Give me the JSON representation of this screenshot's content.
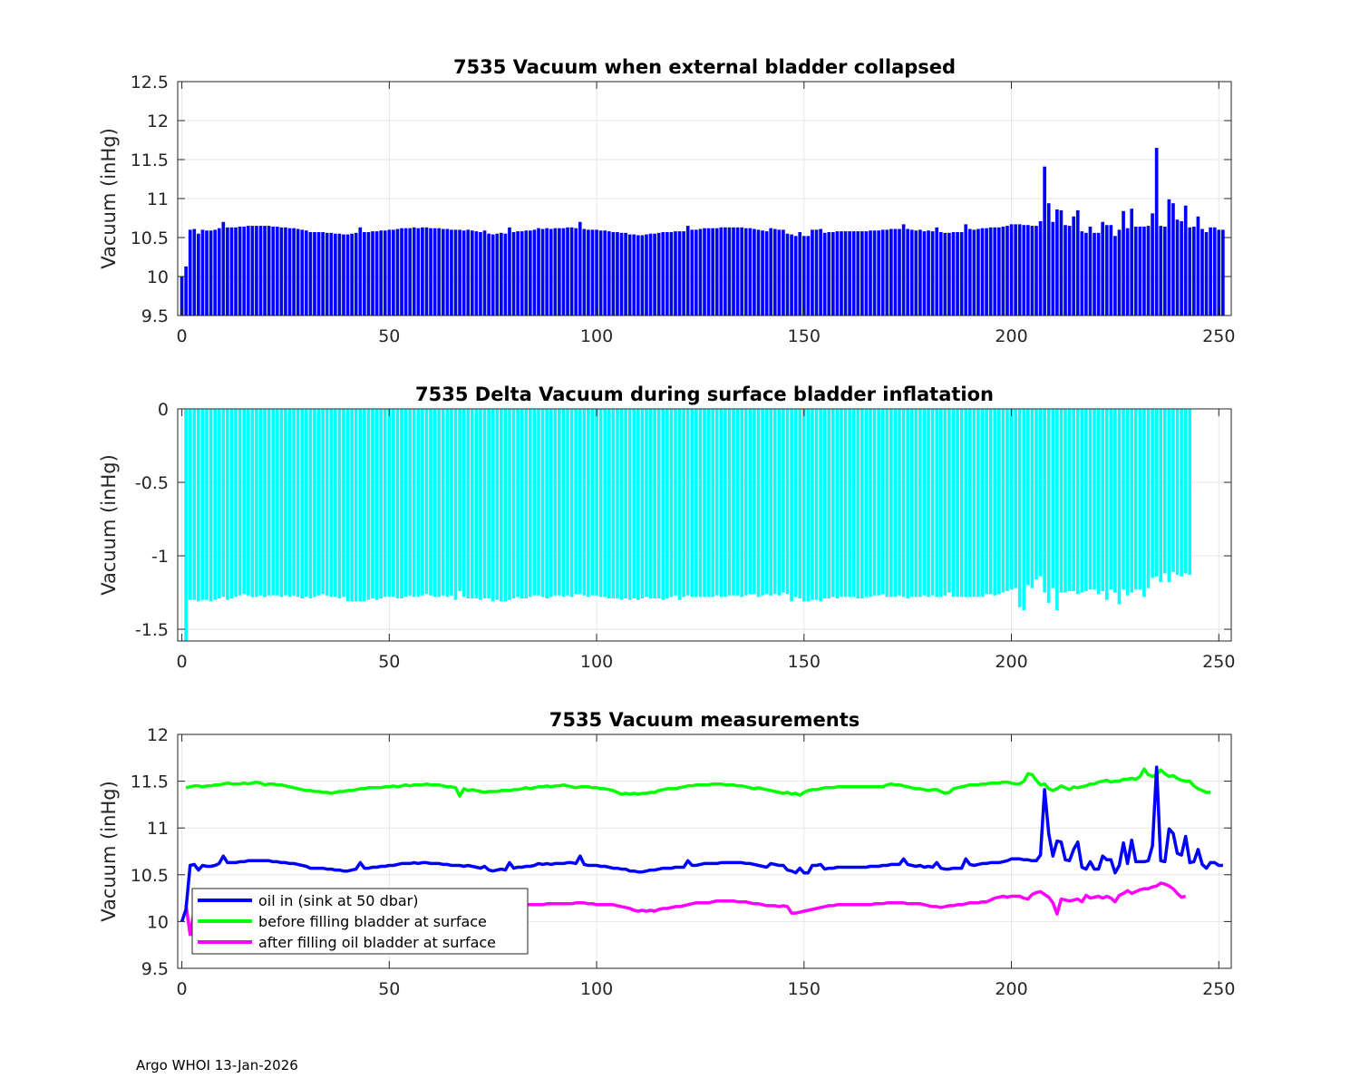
{
  "figure": {
    "footer": "Argo WHOI 13-Jan-2026"
  },
  "chart_data": [
    {
      "type": "bar",
      "title": "7535 Vacuum when external bladder collapsed",
      "xlabel": "",
      "ylabel": "Vacuum (inHg)",
      "xlim": [
        -1,
        253
      ],
      "ylim": [
        9.5,
        12.5
      ],
      "xticks": [
        0,
        50,
        100,
        150,
        200,
        250
      ],
      "yticks": [
        9.5,
        10,
        10.5,
        11,
        11.5,
        12,
        12.5
      ],
      "grid": true,
      "color": "#0000ff",
      "x_start": 0,
      "values": [
        10.0,
        10.13,
        10.6,
        10.61,
        10.55,
        10.6,
        10.59,
        10.59,
        10.6,
        10.62,
        10.7,
        10.63,
        10.63,
        10.63,
        10.64,
        10.64,
        10.65,
        10.65,
        10.65,
        10.65,
        10.65,
        10.65,
        10.64,
        10.64,
        10.63,
        10.63,
        10.62,
        10.62,
        10.61,
        10.6,
        10.59,
        10.57,
        10.57,
        10.57,
        10.57,
        10.56,
        10.56,
        10.55,
        10.55,
        10.54,
        10.54,
        10.55,
        10.56,
        10.63,
        10.57,
        10.57,
        10.58,
        10.58,
        10.59,
        10.59,
        10.6,
        10.6,
        10.61,
        10.62,
        10.62,
        10.62,
        10.63,
        10.62,
        10.63,
        10.63,
        10.62,
        10.62,
        10.62,
        10.61,
        10.61,
        10.6,
        10.6,
        10.6,
        10.59,
        10.6,
        10.59,
        10.58,
        10.57,
        10.59,
        10.55,
        10.54,
        10.55,
        10.56,
        10.55,
        10.63,
        10.57,
        10.58,
        10.58,
        10.59,
        10.59,
        10.6,
        10.62,
        10.61,
        10.62,
        10.61,
        10.62,
        10.62,
        10.62,
        10.63,
        10.63,
        10.62,
        10.7,
        10.61,
        10.6,
        10.6,
        10.6,
        10.59,
        10.59,
        10.58,
        10.57,
        10.57,
        10.56,
        10.56,
        10.54,
        10.54,
        10.53,
        10.53,
        10.54,
        10.55,
        10.55,
        10.56,
        10.57,
        10.57,
        10.57,
        10.58,
        10.58,
        10.58,
        10.65,
        10.6,
        10.6,
        10.61,
        10.62,
        10.62,
        10.62,
        10.62,
        10.63,
        10.63,
        10.63,
        10.63,
        10.63,
        10.63,
        10.62,
        10.62,
        10.61,
        10.6,
        10.59,
        10.58,
        10.62,
        10.61,
        10.6,
        10.6,
        10.55,
        10.54,
        10.52,
        10.57,
        10.52,
        10.52,
        10.6,
        10.6,
        10.61,
        10.56,
        10.57,
        10.57,
        10.58,
        10.58,
        10.58,
        10.58,
        10.58,
        10.58,
        10.58,
        10.58,
        10.59,
        10.59,
        10.59,
        10.6,
        10.6,
        10.61,
        10.61,
        10.61,
        10.67,
        10.61,
        10.6,
        10.59,
        10.6,
        10.58,
        10.59,
        10.58,
        10.63,
        10.57,
        10.56,
        10.56,
        10.57,
        10.57,
        10.57,
        10.67,
        10.61,
        10.6,
        10.61,
        10.62,
        10.62,
        10.63,
        10.63,
        10.63,
        10.64,
        10.65,
        10.67,
        10.67,
        10.67,
        10.66,
        10.66,
        10.65,
        10.65,
        10.71,
        11.41,
        10.94,
        10.7,
        10.86,
        10.85,
        10.66,
        10.65,
        10.77,
        10.85,
        10.58,
        10.56,
        10.64,
        10.56,
        10.56,
        10.7,
        10.66,
        10.66,
        10.52,
        10.6,
        10.84,
        10.62,
        10.87,
        10.64,
        10.64,
        10.64,
        10.65,
        10.81,
        11.65,
        10.65,
        10.64,
        10.99,
        10.94,
        10.73,
        10.71,
        10.91,
        10.63,
        10.64,
        10.77,
        10.61,
        10.57,
        10.63,
        10.63,
        10.6,
        10.6
      ]
    },
    {
      "type": "bar",
      "title": "7535 Delta Vacuum during surface bladder inflatation",
      "xlabel": "",
      "ylabel": "Vacuum (inHg)",
      "xlim": [
        -1,
        253
      ],
      "ylim": [
        -1.58,
        0
      ],
      "xticks": [
        0,
        50,
        100,
        150,
        200,
        250
      ],
      "yticks": [
        -1.5,
        -1,
        -0.5,
        0
      ],
      "ytick_labels": [
        "-1.5",
        "-1",
        "-0.5",
        "0"
      ],
      "grid": true,
      "color": "#00ffff",
      "x_start": 1,
      "values": [
        -1.58,
        -1.3,
        -1.3,
        -1.31,
        -1.3,
        -1.3,
        -1.31,
        -1.3,
        -1.29,
        -1.28,
        -1.3,
        -1.29,
        -1.28,
        -1.27,
        -1.26,
        -1.27,
        -1.28,
        -1.28,
        -1.27,
        -1.28,
        -1.27,
        -1.27,
        -1.27,
        -1.28,
        -1.27,
        -1.28,
        -1.27,
        -1.28,
        -1.29,
        -1.28,
        -1.29,
        -1.28,
        -1.27,
        -1.26,
        -1.27,
        -1.28,
        -1.28,
        -1.29,
        -1.28,
        -1.31,
        -1.31,
        -1.31,
        -1.31,
        -1.31,
        -1.3,
        -1.29,
        -1.3,
        -1.29,
        -1.28,
        -1.28,
        -1.28,
        -1.29,
        -1.29,
        -1.28,
        -1.27,
        -1.28,
        -1.28,
        -1.27,
        -1.26,
        -1.27,
        -1.28,
        -1.28,
        -1.27,
        -1.28,
        -1.27,
        -1.3,
        -1.24,
        -1.28,
        -1.29,
        -1.29,
        -1.29,
        -1.3,
        -1.29,
        -1.29,
        -1.31,
        -1.3,
        -1.31,
        -1.31,
        -1.3,
        -1.29,
        -1.28,
        -1.29,
        -1.29,
        -1.28,
        -1.27,
        -1.27,
        -1.28,
        -1.29,
        -1.28,
        -1.27,
        -1.27,
        -1.28,
        -1.27,
        -1.28,
        -1.26,
        -1.26,
        -1.27,
        -1.28,
        -1.27,
        -1.27,
        -1.28,
        -1.28,
        -1.29,
        -1.29,
        -1.29,
        -1.3,
        -1.29,
        -1.3,
        -1.29,
        -1.3,
        -1.29,
        -1.28,
        -1.29,
        -1.29,
        -1.29,
        -1.3,
        -1.29,
        -1.28,
        -1.27,
        -1.3,
        -1.28,
        -1.27,
        -1.28,
        -1.28,
        -1.28,
        -1.28,
        -1.28,
        -1.28,
        -1.27,
        -1.28,
        -1.28,
        -1.27,
        -1.27,
        -1.27,
        -1.28,
        -1.27,
        -1.26,
        -1.26,
        -1.28,
        -1.27,
        -1.26,
        -1.27,
        -1.26,
        -1.27,
        -1.25,
        -1.26,
        -1.31,
        -1.28,
        -1.29,
        -1.31,
        -1.31,
        -1.3,
        -1.3,
        -1.31,
        -1.29,
        -1.29,
        -1.28,
        -1.29,
        -1.28,
        -1.28,
        -1.28,
        -1.28,
        -1.29,
        -1.29,
        -1.28,
        -1.28,
        -1.27,
        -1.27,
        -1.26,
        -1.28,
        -1.28,
        -1.28,
        -1.27,
        -1.28,
        -1.29,
        -1.28,
        -1.28,
        -1.28,
        -1.27,
        -1.28,
        -1.27,
        -1.28,
        -1.28,
        -1.27,
        -1.25,
        -1.28,
        -1.28,
        -1.28,
        -1.28,
        -1.28,
        -1.28,
        -1.28,
        -1.28,
        -1.26,
        -1.26,
        -1.27,
        -1.26,
        -1.25,
        -1.24,
        -1.23,
        -1.22,
        -1.35,
        -1.37,
        -1.2,
        -1.22,
        -1.16,
        -1.14,
        -1.25,
        -1.32,
        -1.22,
        -1.37,
        -1.25,
        -1.25,
        -1.24,
        -1.24,
        -1.26,
        -1.25,
        -1.24,
        -1.23,
        -1.23,
        -1.26,
        -1.24,
        -1.3,
        -1.23,
        -1.25,
        -1.33,
        -1.23,
        -1.27,
        -1.25,
        -1.23,
        -1.23,
        -1.28,
        -1.22,
        -1.15,
        -1.14,
        -1.18,
        -1.12,
        -1.18,
        -1.11,
        -1.13,
        -1.14,
        -1.12,
        -1.13
      ]
    },
    {
      "type": "line",
      "title": "7535 Vacuum measurements",
      "xlabel": "",
      "ylabel": "Vacuum (inHg)",
      "xlim": [
        -1,
        253
      ],
      "ylim": [
        9.5,
        12
      ],
      "xticks": [
        0,
        50,
        100,
        150,
        200,
        250
      ],
      "yticks": [
        9.5,
        10,
        10.5,
        11,
        11.5,
        12
      ],
      "grid": true,
      "legend": "lower-left",
      "series": [
        {
          "name": "oil in (sink at 50 dbar)",
          "color": "#0000ff",
          "x_start": 0,
          "values": "same-as-panel-1"
        },
        {
          "name": "before filling bladder at surface",
          "color": "#00ff00",
          "x_start": 1,
          "values": [
            11.43,
            11.44,
            11.45,
            11.45,
            11.44,
            11.45,
            11.45,
            11.46,
            11.46,
            11.47,
            11.48,
            11.47,
            11.47,
            11.47,
            11.48,
            11.47,
            11.48,
            11.49,
            11.48,
            11.46,
            11.47,
            11.47,
            11.46,
            11.46,
            11.45,
            11.44,
            11.43,
            11.42,
            11.41,
            11.4,
            11.4,
            11.39,
            11.39,
            11.38,
            11.38,
            11.37,
            11.38,
            11.39,
            11.39,
            11.4,
            11.4,
            11.41,
            11.42,
            11.42,
            11.43,
            11.43,
            11.43,
            11.43,
            11.44,
            11.44,
            11.45,
            11.44,
            11.45,
            11.46,
            11.45,
            11.46,
            11.46,
            11.46,
            11.47,
            11.46,
            11.46,
            11.46,
            11.45,
            11.44,
            11.44,
            11.43,
            11.34,
            11.42,
            11.4,
            11.41,
            11.4,
            11.39,
            11.38,
            11.39,
            11.39,
            11.39,
            11.4,
            11.4,
            11.4,
            11.41,
            11.41,
            11.42,
            11.43,
            11.42,
            11.43,
            11.44,
            11.44,
            11.45,
            11.44,
            11.45,
            11.45,
            11.46,
            11.45,
            11.44,
            11.43,
            11.44,
            11.44,
            11.44,
            11.43,
            11.43,
            11.42,
            11.42,
            11.41,
            11.4,
            11.38,
            11.36,
            11.37,
            11.36,
            11.37,
            11.36,
            11.37,
            11.37,
            11.38,
            11.38,
            11.4,
            11.41,
            11.42,
            11.42,
            11.42,
            11.43,
            11.44,
            11.45,
            11.45,
            11.46,
            11.46,
            11.46,
            11.46,
            11.47,
            11.47,
            11.47,
            11.46,
            11.46,
            11.46,
            11.45,
            11.45,
            11.44,
            11.43,
            11.42,
            11.43,
            11.42,
            11.41,
            11.4,
            11.39,
            11.38,
            11.37,
            11.38,
            11.36,
            11.37,
            11.35,
            11.38,
            11.4,
            11.41,
            11.41,
            11.42,
            11.43,
            11.43,
            11.43,
            11.44,
            11.44,
            11.44,
            11.44,
            11.44,
            11.44,
            11.44,
            11.44,
            11.44,
            11.44,
            11.44,
            11.44,
            11.46,
            11.47,
            11.46,
            11.46,
            11.45,
            11.44,
            11.43,
            11.42,
            11.42,
            11.41,
            11.4,
            11.41,
            11.41,
            11.39,
            11.37,
            11.38,
            11.42,
            11.43,
            11.44,
            11.45,
            11.46,
            11.46,
            11.46,
            11.47,
            11.47,
            11.48,
            11.48,
            11.48,
            11.49,
            11.49,
            11.48,
            11.47,
            11.47,
            11.5,
            11.58,
            11.57,
            11.51,
            11.46,
            11.47,
            11.42,
            11.4,
            11.42,
            11.45,
            11.43,
            11.41,
            11.44,
            11.43,
            11.44,
            11.45,
            11.47,
            11.47,
            11.49,
            11.5,
            11.51,
            11.49,
            11.5,
            11.5,
            11.52,
            11.52,
            11.53,
            11.52,
            11.55,
            11.63,
            11.57,
            11.55,
            11.57,
            11.62,
            11.58,
            11.55,
            11.56,
            11.53,
            11.51,
            11.5,
            11.5,
            11.45,
            11.42,
            11.4,
            11.38,
            11.38
          ]
        },
        {
          "name": "after filling oil bladder at surface",
          "color": "#ff00ff",
          "x_start": 1,
          "values": [
            10.18,
            9.86,
            10.12,
            10.13,
            10.12,
            10.12,
            10.13,
            10.12,
            10.12,
            10.13,
            10.14,
            10.15,
            10.14,
            10.14,
            10.13,
            10.14,
            10.15,
            10.15,
            10.16,
            10.15,
            10.15,
            10.15,
            10.16,
            10.15,
            10.14,
            10.14,
            10.13,
            10.12,
            10.11,
            10.11,
            10.11,
            10.1,
            10.1,
            10.1,
            10.1,
            10.1,
            10.1,
            10.1,
            10.11,
            10.1,
            10.1,
            10.1,
            10.11,
            10.12,
            10.12,
            10.13,
            10.12,
            10.13,
            10.13,
            10.13,
            10.13,
            10.13,
            10.14,
            10.14,
            10.14,
            10.14,
            10.14,
            10.15,
            10.15,
            10.15,
            10.15,
            10.15,
            10.15,
            10.15,
            10.15,
            10.15,
            10.15,
            10.15,
            10.15,
            10.16,
            10.16,
            10.16,
            10.16,
            10.16,
            10.16,
            10.16,
            10.16,
            10.17,
            10.17,
            10.17,
            10.17,
            10.17,
            10.18,
            10.18,
            10.18,
            10.18,
            10.18,
            10.19,
            10.19,
            10.19,
            10.19,
            10.19,
            10.19,
            10.19,
            10.2,
            10.2,
            10.2,
            10.19,
            10.19,
            10.18,
            10.18,
            10.18,
            10.18,
            10.18,
            10.17,
            10.16,
            10.15,
            10.14,
            10.12,
            10.11,
            10.12,
            10.11,
            10.12,
            10.11,
            10.13,
            10.14,
            10.14,
            10.15,
            10.16,
            10.16,
            10.17,
            10.18,
            10.19,
            10.2,
            10.2,
            10.2,
            10.2,
            10.21,
            10.22,
            10.22,
            10.22,
            10.22,
            10.22,
            10.21,
            10.21,
            10.21,
            10.2,
            10.19,
            10.19,
            10.18,
            10.17,
            10.17,
            10.17,
            10.16,
            10.17,
            10.16,
            10.09,
            10.09,
            10.1,
            10.11,
            10.12,
            10.13,
            10.14,
            10.15,
            10.16,
            10.17,
            10.17,
            10.18,
            10.18,
            10.18,
            10.18,
            10.18,
            10.18,
            10.18,
            10.18,
            10.18,
            10.19,
            10.19,
            10.19,
            10.2,
            10.2,
            10.2,
            10.2,
            10.2,
            10.19,
            10.19,
            10.19,
            10.19,
            10.18,
            10.17,
            10.16,
            10.16,
            10.15,
            10.16,
            10.17,
            10.17,
            10.18,
            10.18,
            10.19,
            10.2,
            10.2,
            10.2,
            10.21,
            10.21,
            10.23,
            10.25,
            10.26,
            10.27,
            10.26,
            10.27,
            10.27,
            10.27,
            10.25,
            10.24,
            10.29,
            10.31,
            10.32,
            10.29,
            10.26,
            10.2,
            10.08,
            10.24,
            10.23,
            10.22,
            10.23,
            10.24,
            10.21,
            10.28,
            10.25,
            10.26,
            10.27,
            10.25,
            10.27,
            10.25,
            10.21,
            10.28,
            10.3,
            10.33,
            10.3,
            10.32,
            10.34,
            10.35,
            10.35,
            10.37,
            10.38,
            10.41,
            10.4,
            10.38,
            10.35,
            10.3,
            10.26,
            10.27
          ]
        }
      ]
    }
  ]
}
